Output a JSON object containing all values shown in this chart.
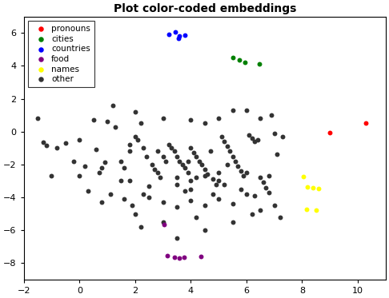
{
  "title": "Plot color-coded embeddings",
  "xlim": [
    -2,
    11
  ],
  "ylim": [
    -9,
    7
  ],
  "xticks": [
    -2,
    0,
    2,
    4,
    6,
    8,
    10
  ],
  "yticks": [
    -8,
    -6,
    -4,
    -2,
    0,
    2,
    4,
    6
  ],
  "figsize": [
    4.86,
    3.73
  ],
  "dpi": 100,
  "groups": {
    "pronouns": {
      "color": "red",
      "points": [
        [
          10.3,
          0.5
        ],
        [
          9.0,
          -0.05
        ]
      ]
    },
    "cities": {
      "color": "green",
      "points": [
        [
          5.5,
          4.5
        ],
        [
          5.75,
          4.35
        ],
        [
          5.95,
          4.2
        ],
        [
          6.45,
          4.1
        ]
      ]
    },
    "countries": {
      "color": "blue",
      "points": [
        [
          3.2,
          5.9
        ],
        [
          3.45,
          6.05
        ],
        [
          3.6,
          5.8
        ],
        [
          3.8,
          5.85
        ],
        [
          3.55,
          5.65
        ]
      ]
    },
    "food": {
      "color": "purple",
      "points": [
        [
          3.15,
          -7.55
        ],
        [
          3.4,
          -7.65
        ],
        [
          3.6,
          -7.7
        ],
        [
          3.75,
          -7.65
        ],
        [
          4.35,
          -7.6
        ],
        [
          3.05,
          -5.65
        ]
      ]
    },
    "names": {
      "color": "yellow",
      "points": [
        [
          8.05,
          -2.75
        ],
        [
          8.2,
          -3.35
        ],
        [
          8.4,
          -3.4
        ],
        [
          8.6,
          -3.45
        ],
        [
          8.15,
          -4.75
        ],
        [
          8.5,
          -4.8
        ]
      ]
    },
    "other": {
      "color": "#333333",
      "points": [
        [
          -1.5,
          0.8
        ],
        [
          -1.3,
          -0.65
        ],
        [
          -1.2,
          -0.85
        ],
        [
          -0.8,
          -1.0
        ],
        [
          -0.5,
          -0.7
        ],
        [
          -0.2,
          -1.8
        ],
        [
          0.0,
          -0.5
        ],
        [
          0.3,
          -3.6
        ],
        [
          0.6,
          -1.1
        ],
        [
          0.7,
          -2.5
        ],
        [
          0.8,
          -2.2
        ],
        [
          0.9,
          -1.85
        ],
        [
          1.1,
          -3.8
        ],
        [
          1.2,
          1.6
        ],
        [
          1.3,
          0.3
        ],
        [
          1.5,
          -1.8
        ],
        [
          1.6,
          -2.2
        ],
        [
          1.8,
          -3.0
        ],
        [
          1.9,
          -4.5
        ],
        [
          2.0,
          -0.3
        ],
        [
          2.2,
          0.5
        ],
        [
          2.3,
          -1.0
        ],
        [
          2.4,
          -1.5
        ],
        [
          2.6,
          -2.0
        ],
        [
          2.7,
          -2.3
        ],
        [
          2.8,
          -2.5
        ],
        [
          2.9,
          -2.8
        ],
        [
          3.0,
          -1.5
        ],
        [
          3.1,
          -1.8
        ],
        [
          3.2,
          -0.8
        ],
        [
          3.3,
          -1.0
        ],
        [
          3.4,
          -1.2
        ],
        [
          3.5,
          -1.5
        ],
        [
          3.6,
          -1.8
        ],
        [
          3.7,
          -2.0
        ],
        [
          3.8,
          -2.2
        ],
        [
          3.9,
          -2.5
        ],
        [
          4.0,
          -1.0
        ],
        [
          4.1,
          -1.3
        ],
        [
          4.2,
          -1.5
        ],
        [
          4.3,
          -1.8
        ],
        [
          4.4,
          -2.0
        ],
        [
          4.5,
          -2.3
        ],
        [
          4.6,
          -2.6
        ],
        [
          4.7,
          -1.2
        ],
        [
          4.8,
          -2.9
        ],
        [
          4.9,
          -3.2
        ],
        [
          5.0,
          0.8
        ],
        [
          5.1,
          -0.3
        ],
        [
          5.2,
          -0.6
        ],
        [
          5.3,
          -0.9
        ],
        [
          5.4,
          -1.2
        ],
        [
          5.5,
          -1.5
        ],
        [
          5.6,
          -1.8
        ],
        [
          5.7,
          -2.1
        ],
        [
          5.8,
          -2.4
        ],
        [
          5.9,
          -2.7
        ],
        [
          6.0,
          1.3
        ],
        [
          6.1,
          -0.2
        ],
        [
          6.2,
          -0.4
        ],
        [
          6.3,
          -0.6
        ],
        [
          6.4,
          -0.5
        ],
        [
          6.5,
          -2.8
        ],
        [
          6.6,
          -3.1
        ],
        [
          6.7,
          -3.4
        ],
        [
          6.8,
          -3.7
        ],
        [
          6.9,
          1.0
        ],
        [
          7.0,
          -0.1
        ],
        [
          7.1,
          -1.4
        ],
        [
          7.2,
          -5.2
        ],
        [
          0.5,
          0.7
        ],
        [
          1.0,
          0.6
        ],
        [
          2.0,
          1.2
        ],
        [
          3.0,
          0.8
        ],
        [
          4.0,
          0.7
        ],
        [
          4.5,
          0.5
        ],
        [
          5.5,
          1.3
        ],
        [
          6.5,
          0.8
        ],
        [
          2.5,
          -4.0
        ],
        [
          3.0,
          -4.3
        ],
        [
          3.5,
          -4.6
        ],
        [
          4.0,
          -4.2
        ],
        [
          4.5,
          -4.5
        ],
        [
          5.0,
          -4.1
        ],
        [
          5.5,
          -4.4
        ],
        [
          6.0,
          -3.8
        ],
        [
          0.0,
          -2.7
        ],
        [
          1.5,
          -3.0
        ],
        [
          2.5,
          -3.3
        ],
        [
          3.8,
          -3.6
        ],
        [
          5.0,
          -3.0
        ],
        [
          6.0,
          -2.5
        ],
        [
          6.5,
          -4.8
        ],
        [
          7.0,
          -4.5
        ],
        [
          2.0,
          -5.0
        ],
        [
          3.0,
          -5.5
        ],
        [
          4.2,
          -5.2
        ],
        [
          5.5,
          -5.5
        ],
        [
          4.0,
          -3.5
        ],
        [
          4.8,
          -3.8
        ],
        [
          5.2,
          -3.2
        ],
        [
          3.5,
          -2.8
        ],
        [
          2.8,
          -1.2
        ],
        [
          4.2,
          -2.8
        ],
        [
          5.8,
          -3.5
        ],
        [
          6.2,
          -5.0
        ],
        [
          6.8,
          -2.7
        ],
        [
          1.8,
          -1.2
        ],
        [
          2.3,
          -3.8
        ],
        [
          3.9,
          -1.8
        ],
        [
          0.8,
          -4.3
        ],
        [
          1.6,
          -4.1
        ],
        [
          4.5,
          -2.7
        ],
        [
          5.3,
          -2.0
        ],
        [
          4.0,
          -3.0
        ],
        [
          5.0,
          -2.5
        ],
        [
          3.5,
          -3.2
        ],
        [
          6.3,
          -3.9
        ],
        [
          2.2,
          -5.8
        ],
        [
          3.5,
          -6.5
        ],
        [
          4.5,
          -6.0
        ],
        [
          1.8,
          -0.8
        ],
        [
          -1.0,
          -2.7
        ],
        [
          0.2,
          -2.1
        ],
        [
          7.3,
          -0.3
        ],
        [
          2.1,
          -0.5
        ]
      ]
    }
  }
}
